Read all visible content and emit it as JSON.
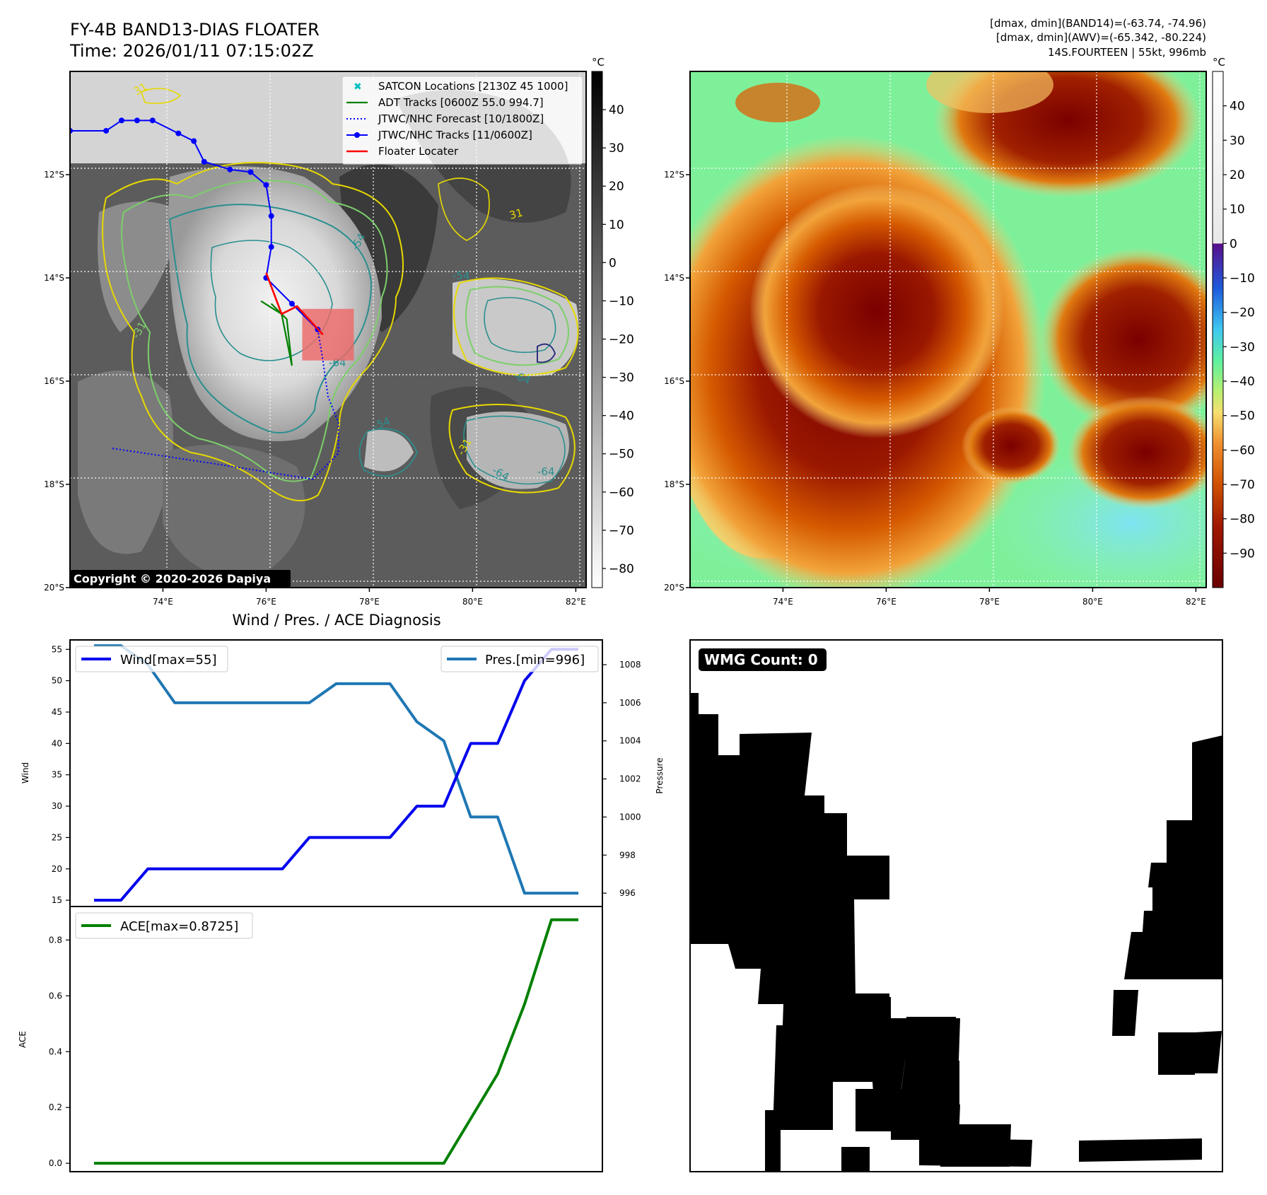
{
  "header": {
    "title_line1": "FY-4B BAND13-DIAS FLOATER",
    "title_line2": "Time: 2026/01/11 07:15:02Z",
    "info_line1": "[dmax, dmin](BAND14)=(-63.74, -74.96)",
    "info_line2": "[dmax, dmin](AWV)=(-65.342, -80.224)",
    "info_line3": "14S.FOURTEEN | 55kt, 996mb"
  },
  "map_axes": {
    "lon_ticks": [
      "74°E",
      "76°E",
      "78°E",
      "80°E",
      "82°E"
    ],
    "lat_ticks": [
      "12°S",
      "14°S",
      "16°S",
      "18°S",
      "20°S"
    ],
    "lon_range": [
      72.2,
      82.2
    ],
    "lat_range": [
      -20.0,
      -10.0
    ]
  },
  "ir_map": {
    "copyright": "Copyright © 2020-2026 Dapiya",
    "contour_labels": [
      "31",
      "31",
      "-54",
      "-31",
      "-54",
      "-64",
      "-64",
      "-54",
      "-31",
      "-64",
      "-64"
    ],
    "colorbar": {
      "unit": "°C",
      "ticks": [
        "40",
        "30",
        "20",
        "10",
        "0",
        "−10",
        "−20",
        "−30",
        "−40",
        "−50",
        "−60",
        "−70",
        "−80"
      ],
      "tick_values": [
        40,
        30,
        20,
        10,
        0,
        -10,
        -20,
        -30,
        -40,
        -50,
        -60,
        -70,
        -80
      ],
      "range": [
        -85,
        50
      ]
    },
    "legend": [
      {
        "label": "SATCON Locations [2130Z 45 1000]",
        "color": "#00bfbf",
        "icon": "x-marker-icon"
      },
      {
        "label": "ADT Tracks [0600Z 55.0 994.7]",
        "color": "#008000",
        "icon": "solid-line-icon"
      },
      {
        "label": "JTWC/NHC Forecast [10/1800Z]",
        "color": "#0000ff",
        "icon": "dotted-line-icon"
      },
      {
        "label": "JTWC/NHC Tracks [11/0600Z]",
        "color": "#0000ff",
        "icon": "line-dot-icon"
      },
      {
        "label": "Floater Locater",
        "color": "#ff0000",
        "icon": "solid-line-icon"
      }
    ],
    "jtwc_track": [
      [
        72.2,
        -11.15
      ],
      [
        72.9,
        -11.15
      ],
      [
        73.2,
        -10.95
      ],
      [
        73.5,
        -10.95
      ],
      [
        73.8,
        -10.95
      ],
      [
        74.3,
        -11.2
      ],
      [
        74.6,
        -11.35
      ],
      [
        74.8,
        -11.75
      ],
      [
        75.3,
        -11.9
      ],
      [
        75.7,
        -11.95
      ],
      [
        76.0,
        -12.2
      ],
      [
        76.1,
        -12.8
      ],
      [
        76.1,
        -13.4
      ],
      [
        76.0,
        -14.0
      ],
      [
        76.5,
        -14.5
      ],
      [
        77.0,
        -15.0
      ]
    ],
    "jtwc_forecast": [
      [
        77.0,
        -15.0
      ],
      [
        77.1,
        -15.6
      ],
      [
        77.2,
        -16.3
      ],
      [
        77.4,
        -16.8
      ],
      [
        77.4,
        -17.4
      ],
      [
        76.9,
        -17.9
      ],
      [
        75.0,
        -17.6
      ],
      [
        73.0,
        -17.3
      ]
    ],
    "adt_track": [
      [
        75.9,
        -14.45
      ],
      [
        76.3,
        -14.7
      ],
      [
        76.5,
        -15.7
      ],
      [
        76.4,
        -14.8
      ],
      [
        76.1,
        -14.5
      ]
    ],
    "floater_track": [
      [
        76.0,
        -13.9
      ],
      [
        76.3,
        -14.7
      ],
      [
        76.6,
        -14.55
      ],
      [
        77.1,
        -15.1
      ]
    ],
    "floater_box": {
      "lon_range": [
        76.7,
        77.7
      ],
      "lat_range": [
        -15.6,
        -14.6
      ],
      "color": "#ee6666"
    }
  },
  "awv_map": {
    "colorbar": {
      "unit": "°C",
      "ticks": [
        "40",
        "30",
        "20",
        "10",
        "0",
        "−10",
        "−20",
        "−30",
        "−40",
        "−50",
        "−60",
        "−70",
        "−80",
        "−90"
      ],
      "tick_values": [
        40,
        30,
        20,
        10,
        0,
        -10,
        -20,
        -30,
        -40,
        -50,
        -60,
        -70,
        -80,
        -90
      ],
      "range": [
        -100,
        50
      ]
    }
  },
  "chart_data": [
    {
      "type": "line",
      "title": "Wind / Pres. / ACE Diagnosis",
      "ylabel": "Wind",
      "y2label": "Pressure",
      "ylim": [
        14,
        56.5
      ],
      "y2lim": [
        995.3,
        1009.3
      ],
      "yticks": [
        15,
        20,
        25,
        30,
        35,
        40,
        45,
        50,
        55
      ],
      "y2ticks": [
        996,
        998,
        1000,
        1002,
        1004,
        1006,
        1008
      ],
      "x": [
        0,
        1,
        2,
        3,
        4,
        5,
        6,
        7,
        8,
        9,
        10,
        11,
        12,
        13,
        14,
        15,
        16,
        17,
        18
      ],
      "series": [
        {
          "name": "Wind[max=55]",
          "axis": "left",
          "color": "#0000ee",
          "values": [
            15,
            15,
            20,
            20,
            20,
            20,
            20,
            20,
            25,
            25,
            25,
            25,
            30,
            30,
            40,
            40,
            50,
            55,
            55
          ]
        },
        {
          "name": "Pres.[min=996]",
          "axis": "right",
          "color": "#1f77b4",
          "values": [
            1009,
            1009,
            1008,
            1006,
            1006,
            1006,
            1006,
            1006,
            1006,
            1007,
            1007,
            1007,
            1005,
            1004,
            1000,
            1000,
            996,
            996,
            996
          ]
        }
      ],
      "legend_positions": [
        "top-left",
        "top-right"
      ]
    },
    {
      "type": "line",
      "ylabel": "ACE",
      "ylim": [
        -0.03,
        0.92
      ],
      "yticks": [
        "0.0",
        "0.2",
        "0.4",
        "0.6",
        "0.8"
      ],
      "ytick_values": [
        0.0,
        0.2,
        0.4,
        0.6,
        0.8
      ],
      "x": [
        0,
        1,
        2,
        3,
        4,
        5,
        6,
        7,
        8,
        9,
        10,
        11,
        12,
        13,
        14,
        15,
        16,
        17,
        18
      ],
      "series": [
        {
          "name": "ACE[max=0.8725]",
          "color": "#008000",
          "values": [
            0,
            0,
            0,
            0,
            0,
            0,
            0,
            0,
            0,
            0,
            0,
            0,
            0,
            0,
            0.16,
            0.32,
            0.57,
            0.8725,
            0.8725
          ]
        }
      ],
      "legend_position": "top-left"
    }
  ],
  "wmg": {
    "badge": "WMG Count: 0"
  }
}
